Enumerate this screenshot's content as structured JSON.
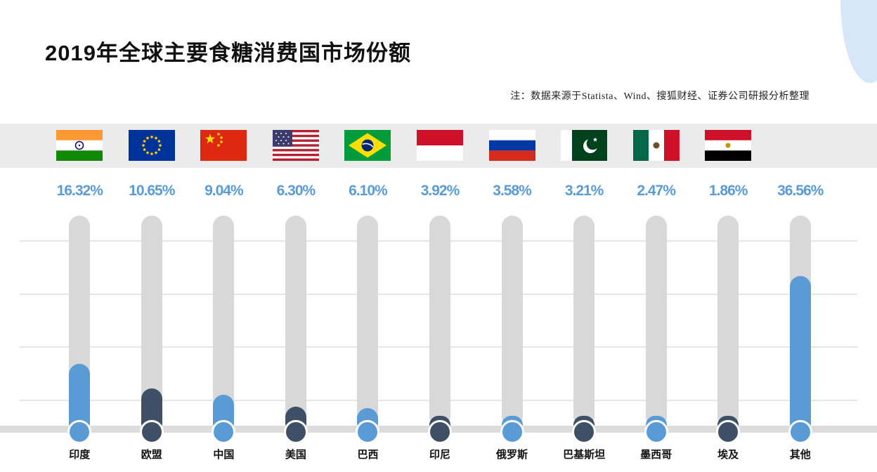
{
  "page": {
    "title": "2019年全球主要食糖消费国市场份额",
    "note": "注：数据来源于Statista、Wind、搜狐财经、证券公司研报分析整理"
  },
  "colors": {
    "blue": "#5B9BD5",
    "dark": "#3E4F66",
    "track": "#D8D8D8",
    "band": "#EBEBEB",
    "grid": "#E6E6E6",
    "baseline": "#DCDCDC",
    "deco": "#D7E6F8",
    "title_text": "#111111",
    "note_text": "#222222",
    "label_text": "#111111"
  },
  "chart_data": {
    "type": "bar",
    "title": "2019年全球主要食糖消费国市场份额",
    "subtitle": "注：数据来源于Statista、Wind、搜狐财经、证券公司研报分析整理",
    "categories": [
      "印度",
      "欧盟",
      "中国",
      "美国",
      "巴西",
      "印尼",
      "俄罗斯",
      "巴基斯坦",
      "墨西哥",
      "埃及",
      "其他"
    ],
    "values": [
      16.32,
      10.65,
      9.04,
      6.3,
      6.1,
      3.92,
      3.58,
      3.21,
      2.47,
      1.86,
      36.56
    ],
    "value_labels": [
      "16.32%",
      "10.65%",
      "9.04%",
      "6.30%",
      "6.10%",
      "3.92%",
      "3.58%",
      "3.21%",
      "2.47%",
      "1.86%",
      "36.56%"
    ],
    "bar_color_keys": [
      "blue",
      "dark",
      "blue",
      "dark",
      "blue",
      "dark",
      "blue",
      "dark",
      "blue",
      "dark",
      "blue"
    ],
    "flags": [
      "india-flag-icon",
      "eu-flag-icon",
      "china-flag-icon",
      "usa-flag-icon",
      "brazil-flag-icon",
      "indonesia-flag-icon",
      "russia-flag-icon",
      "pakistan-flag-icon",
      "mexico-flag-icon",
      "egypt-flag-icon",
      null
    ],
    "unit": "%",
    "ylim": [
      0,
      45
    ],
    "grid": true,
    "legend": "none",
    "orientation": "vertical-lollipop"
  }
}
